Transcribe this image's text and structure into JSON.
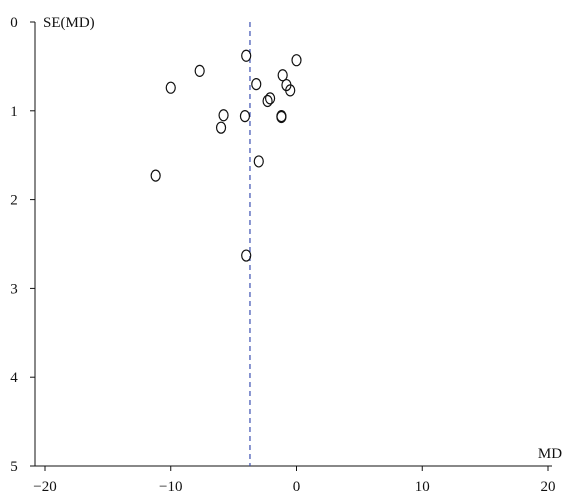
{
  "chart_data": {
    "type": "scatter",
    "title": "",
    "xlabel": "MD",
    "ylabel": "SE(MD)",
    "xlim": [
      -20,
      20
    ],
    "ylim": [
      0,
      5
    ],
    "y_inverted": true,
    "x_ticks": [
      -20,
      -10,
      0,
      10,
      20
    ],
    "x_tick_labels": [
      "−20",
      "−10",
      "0",
      "10",
      "20"
    ],
    "y_ticks": [
      0,
      1,
      2,
      3,
      4,
      5
    ],
    "y_tick_labels": [
      "0",
      "1",
      "2",
      "3",
      "4",
      "5"
    ],
    "grid": false,
    "reference_line": {
      "orientation": "vertical",
      "x": -3.7,
      "style": "dashed",
      "color": "#3a4fb0"
    },
    "points": [
      {
        "x": -4.0,
        "y": 0.38
      },
      {
        "x": 0.0,
        "y": 0.43
      },
      {
        "x": -7.7,
        "y": 0.55
      },
      {
        "x": -1.1,
        "y": 0.6
      },
      {
        "x": -3.2,
        "y": 0.7
      },
      {
        "x": -0.8,
        "y": 0.71
      },
      {
        "x": -10.0,
        "y": 0.74
      },
      {
        "x": -0.5,
        "y": 0.77
      },
      {
        "x": -2.1,
        "y": 0.86
      },
      {
        "x": -2.3,
        "y": 0.89
      },
      {
        "x": -5.8,
        "y": 1.05
      },
      {
        "x": -4.1,
        "y": 1.06
      },
      {
        "x": -1.2,
        "y": 1.06
      },
      {
        "x": -1.2,
        "y": 1.07
      },
      {
        "x": -6.0,
        "y": 1.19
      },
      {
        "x": -3.0,
        "y": 1.57
      },
      {
        "x": -11.2,
        "y": 1.73
      },
      {
        "x": -4.0,
        "y": 2.63
      }
    ]
  }
}
